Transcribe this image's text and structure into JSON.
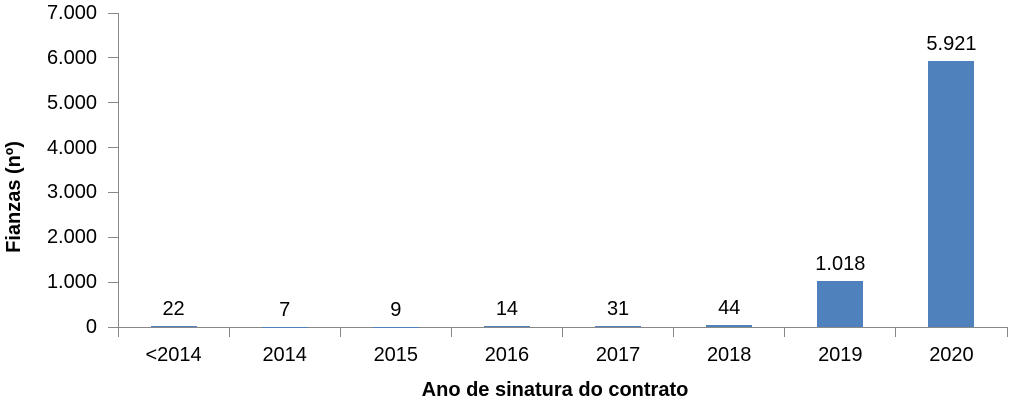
{
  "chart_data": {
    "type": "bar",
    "title": "",
    "categories": [
      "<2014",
      "2014",
      "2015",
      "2016",
      "2017",
      "2018",
      "2019",
      "2020"
    ],
    "values": [
      22,
      7,
      9,
      14,
      31,
      44,
      1018,
      5921
    ],
    "value_labels": [
      "22",
      "7",
      "9",
      "14",
      "31",
      "44",
      "1.018",
      "5.921"
    ],
    "xlabel": "Ano de sinatura do contrato",
    "ylabel": "Fianzas (nº)",
    "ylim": [
      0,
      7000
    ],
    "ytick_labels_top_to_bottom": [
      "7.000",
      "6.000",
      "5.000",
      "4.000",
      "3.000",
      "2.000",
      "1.000",
      "0"
    ],
    "grid": false,
    "legend_position": "none",
    "bar_color": "#4F81BD",
    "axis_color": "#888888",
    "text_color": "#000000"
  }
}
